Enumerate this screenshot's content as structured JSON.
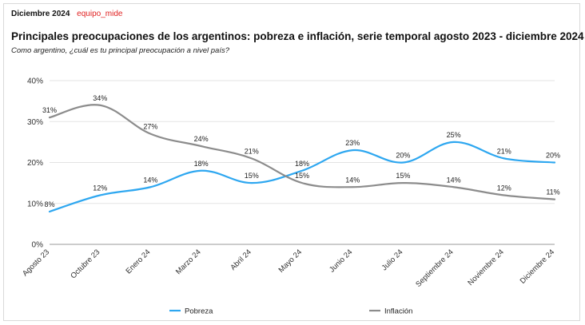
{
  "header": {
    "date": "Diciembre 2024",
    "brand": "equipo_mide"
  },
  "title": "Principales preocupaciones de los argentinos: pobreza e inflación, serie temporal agosto 2023 - diciembre 2024",
  "subtitle": "Como argentino, ¿cuál es tu principal preocupación a nivel país?",
  "chart_data": {
    "type": "line",
    "categories": [
      "Agosto 23",
      "Octubre 23",
      "Enero 24",
      "Marzo 24",
      "Abril 24",
      "Mayo 24",
      "Junio 24",
      "Julio 24",
      "Septiembre 24",
      "Noviembre 24",
      "Diciembre 24"
    ],
    "ylim": [
      0,
      40
    ],
    "yticks": [
      0,
      10,
      20,
      30,
      40
    ],
    "ytick_labels": [
      "0%",
      "10%",
      "20%",
      "30%",
      "40%"
    ],
    "grid": true,
    "legend_placement": "bottom",
    "series": [
      {
        "name": "Pobreza",
        "color": "#2ea7f0",
        "values": [
          8,
          12,
          14,
          18,
          15,
          18,
          23,
          20,
          25,
          21,
          20
        ],
        "labels": [
          "8%",
          "12%",
          "14%",
          "18%",
          "15%",
          "18%",
          "23%",
          "20%",
          "25%",
          "21%",
          "20%"
        ]
      },
      {
        "name": "Inflación",
        "color": "#8c8c8c",
        "values": [
          31,
          34,
          27,
          24,
          21,
          15,
          14,
          15,
          14,
          12,
          11
        ],
        "labels": [
          "31%",
          "34%",
          "27%",
          "24%",
          "21%",
          "15%",
          "14%",
          "15%",
          "14%",
          "12%",
          "11%"
        ]
      }
    ]
  }
}
